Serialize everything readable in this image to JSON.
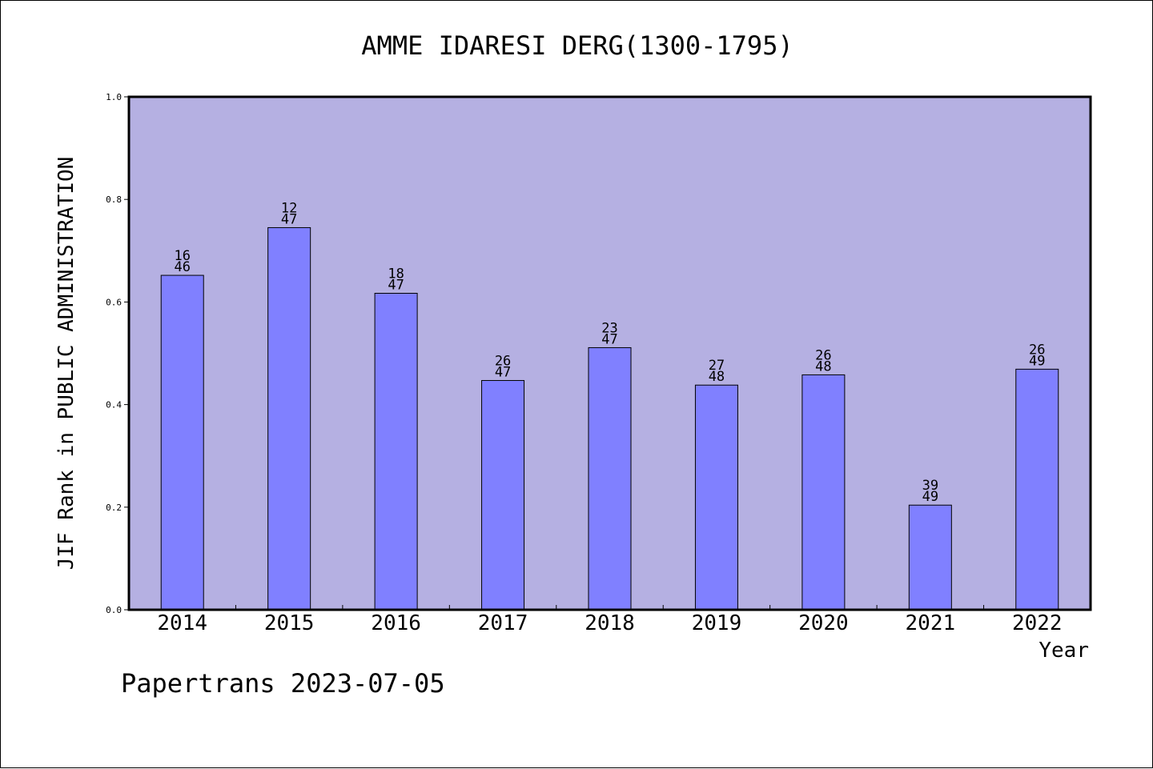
{
  "chart_data": {
    "type": "bar",
    "title": "AMME IDARESI DERG(1300-1795)",
    "xlabel": "Year",
    "ylabel": "JIF Rank in PUBLIC ADMINISTRATION",
    "ylim": [
      0.0,
      1.0
    ],
    "yticks": [
      "0.0",
      "0.2",
      "0.4",
      "0.6",
      "0.8",
      "1.0"
    ],
    "categories": [
      "2014",
      "2015",
      "2016",
      "2017",
      "2018",
      "2019",
      "2020",
      "2021",
      "2022"
    ],
    "values": [
      0.652,
      0.745,
      0.617,
      0.447,
      0.511,
      0.438,
      0.458,
      0.204,
      0.469
    ],
    "rank_labels": [
      {
        "rank": "16",
        "total": "46"
      },
      {
        "rank": "12",
        "total": "47"
      },
      {
        "rank": "18",
        "total": "47"
      },
      {
        "rank": "26",
        "total": "47"
      },
      {
        "rank": "23",
        "total": "47"
      },
      {
        "rank": "27",
        "total": "48"
      },
      {
        "rank": "26",
        "total": "48"
      },
      {
        "rank": "39",
        "total": "49"
      },
      {
        "rank": "26",
        "total": "49"
      }
    ],
    "colors": {
      "plot_background": "#b5b0e2",
      "bar_fill": "#8080ff",
      "bar_stroke": "#000000"
    },
    "grid": false,
    "footer": "Papertrans 2023-07-05"
  }
}
